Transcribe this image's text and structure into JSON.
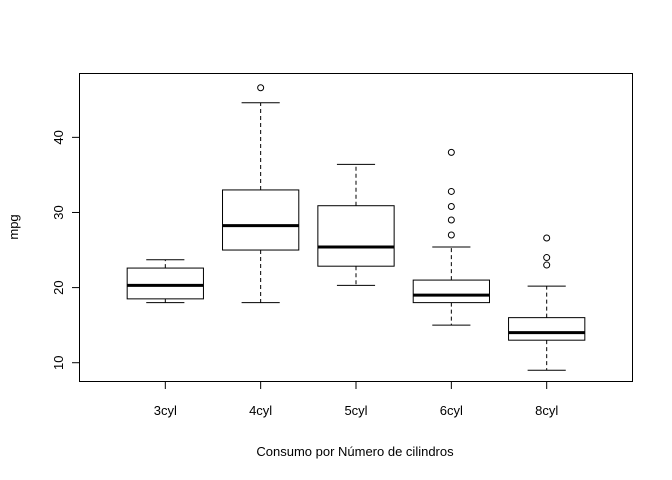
{
  "chart_data": {
    "type": "boxplot",
    "xlabel": "Consumo por Número de cilindros",
    "ylabel": "mpg",
    "ylim": [
      7.5,
      48.5
    ],
    "yticks": [
      10,
      20,
      30,
      40
    ],
    "grid": false,
    "categories": [
      "3cyl",
      "4cyl",
      "5cyl",
      "6cyl",
      "8cyl"
    ],
    "boxes": [
      {
        "category": "3cyl",
        "whisker_low": 18.0,
        "q1": 18.5,
        "median": 20.3,
        "q3": 22.6,
        "whisker_high": 23.7,
        "outliers": []
      },
      {
        "category": "4cyl",
        "whisker_low": 18.0,
        "q1": 25.0,
        "median": 28.25,
        "q3": 33.0,
        "whisker_high": 44.6,
        "outliers": [
          46.6
        ]
      },
      {
        "category": "5cyl",
        "whisker_low": 20.3,
        "q1": 22.85,
        "median": 25.4,
        "q3": 30.9,
        "whisker_high": 36.4,
        "outliers": []
      },
      {
        "category": "6cyl",
        "whisker_low": 15.0,
        "q1": 18.0,
        "median": 19.0,
        "q3": 21.0,
        "whisker_high": 25.4,
        "outliers": [
          27.0,
          29.0,
          30.8,
          32.8,
          38.0
        ]
      },
      {
        "category": "8cyl",
        "whisker_low": 9.0,
        "q1": 13.0,
        "median": 14.0,
        "q3": 16.0,
        "whisker_high": 20.2,
        "outliers": [
          23.0,
          24.0,
          26.6
        ]
      }
    ]
  }
}
